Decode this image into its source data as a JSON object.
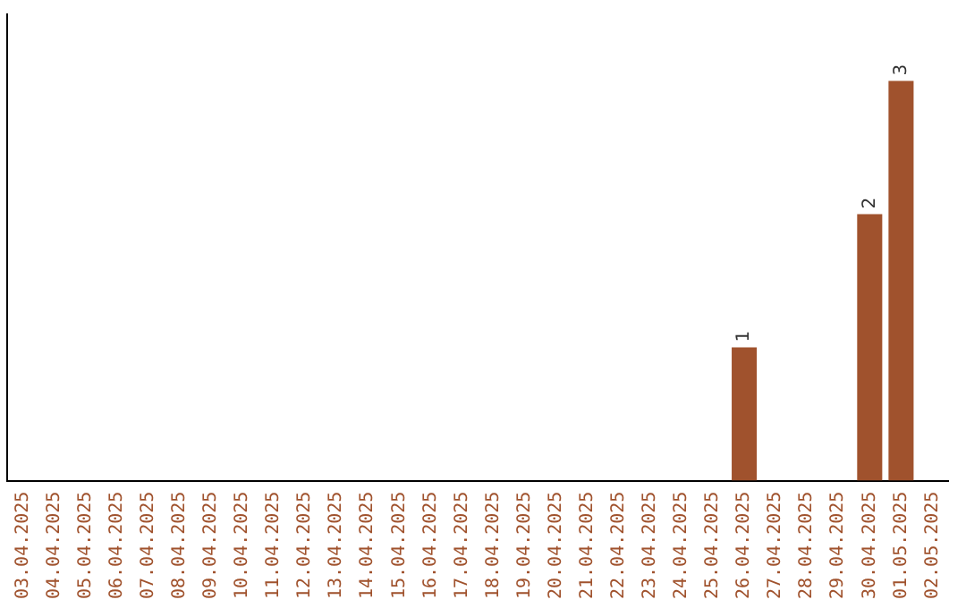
{
  "chart_data": {
    "type": "bar",
    "categories": [
      "03.04.2025",
      "04.04.2025",
      "05.04.2025",
      "06.04.2025",
      "07.04.2025",
      "08.04.2025",
      "09.04.2025",
      "10.04.2025",
      "11.04.2025",
      "12.04.2025",
      "13.04.2025",
      "14.04.2025",
      "15.04.2025",
      "16.04.2025",
      "17.04.2025",
      "18.04.2025",
      "19.04.2025",
      "20.04.2025",
      "21.04.2025",
      "22.04.2025",
      "23.04.2025",
      "24.04.2025",
      "25.04.2025",
      "26.04.2025",
      "27.04.2025",
      "28.04.2025",
      "29.04.2025",
      "30.04.2025",
      "01.05.2025",
      "02.05.2025"
    ],
    "values": [
      null,
      null,
      null,
      null,
      null,
      null,
      null,
      null,
      null,
      null,
      null,
      null,
      null,
      null,
      null,
      null,
      null,
      null,
      null,
      null,
      null,
      null,
      null,
      1,
      null,
      null,
      null,
      2,
      3,
      null
    ],
    "data_labels": true,
    "color": "#a0522d",
    "grid": false,
    "legend": false,
    "tick_labels": "x"
  }
}
